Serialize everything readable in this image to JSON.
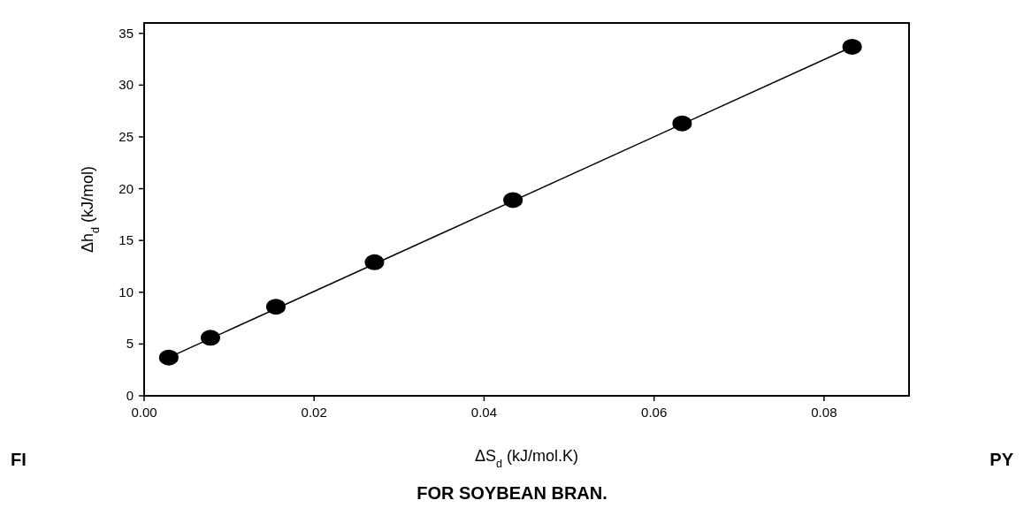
{
  "chart_data": {
    "type": "scatter",
    "xlabel": "ΔS$_{d}$ (kJ/mol.K)",
    "ylabel": "Δh$_{d}$ (kJ/mol)",
    "annotations": [
      "FI",
      "PY",
      "FOR SOYBEAN BRAN."
    ],
    "xlim": [
      0,
      0.09
    ],
    "xticks": [
      {
        "value": 0,
        "label": "0.00"
      },
      {
        "value": 0.02,
        "label": "0.02"
      },
      {
        "value": 0.04,
        "label": "0.04"
      },
      {
        "value": 0.06,
        "label": "0.06"
      },
      {
        "value": 0.08,
        "label": "0.08"
      }
    ],
    "ylim": [
      0,
      36
    ],
    "yticks": [
      0,
      5,
      10,
      15,
      20,
      25,
      30,
      35
    ],
    "grid": false,
    "series": [
      {
        "color": "#000000",
        "marker": "circle",
        "x": [
          0.0029,
          0.0078,
          0.0155,
          0.0271,
          0.0434,
          0.0633,
          0.0833
        ],
        "values": [
          3.7,
          5.6,
          8.6,
          12.9,
          18.9,
          26.3,
          33.7
        ]
      },
      {
        "type": "line",
        "color": "#000000",
        "line_style": "solid",
        "x": [
          0.0029,
          0.0833
        ],
        "values": [
          3.7,
          33.7
        ]
      }
    ]
  }
}
